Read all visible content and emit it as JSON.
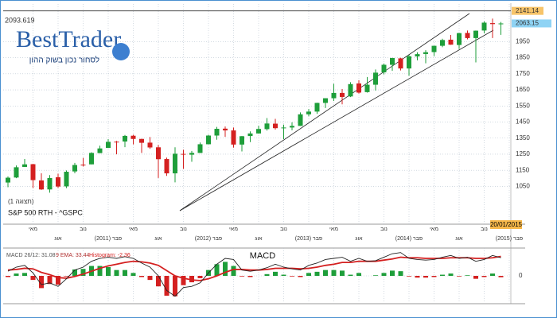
{
  "chart_data": [
    {
      "type": "candlestick",
      "logo": {
        "brand": "BestTrader",
        "tagline": "לסחור נכון בשוק ההון"
      },
      "top_label": "2093.619",
      "symbol": "S&P 500 RTH - ^GSPC",
      "view": "(תצוגה 1)",
      "date_label": "20/01/2015",
      "high_line": 2141.14,
      "last_price": 2063.15,
      "categories": [
        null,
        null,
        null,
        "מאי",
        null,
        null,
        "אוג",
        null,
        null,
        "נוב",
        null,
        null,
        "(2011) פבר",
        null,
        null,
        "מאי",
        null,
        null,
        "אוג",
        null,
        null,
        "נוב",
        null,
        null,
        "(2012) פבר",
        null,
        null,
        "מאי",
        null,
        null,
        "אוג",
        null,
        null,
        "נוב",
        null,
        null,
        "(2013) פבר",
        null,
        null,
        "מאי",
        null,
        null,
        "אוג",
        null,
        null,
        "נוב",
        null,
        null,
        "(2014) פבר",
        null,
        null,
        "מאי",
        null,
        null,
        "אוג",
        null,
        null,
        "נוב",
        null,
        null,
        "(2015) פבר"
      ],
      "open": [
        1074,
        1105,
        1171,
        1188,
        1087,
        1031,
        1107,
        1050,
        1143,
        1185,
        1187,
        1257,
        1289,
        1328,
        1329,
        1365,
        1345,
        1322,
        1293,
        1220,
        1131,
        1252,
        1247,
        1258,
        1312,
        1366,
        1409,
        1398,
        1310,
        1363,
        1379,
        1406,
        1440,
        1412,
        1416,
        1426,
        1498,
        1515,
        1569,
        1598,
        1631,
        1609,
        1690,
        1636,
        1682,
        1759,
        1806,
        1846,
        1783,
        1858,
        1873,
        1885,
        1924,
        1962,
        1929,
        2004,
        1972,
        2019,
        2065,
        2058,
        null
      ],
      "high": [
        1112,
        1180,
        1220,
        1190,
        1131,
        1120,
        1129,
        1149,
        1196,
        1227,
        1262,
        1303,
        1344,
        1333,
        1370,
        1371,
        1346,
        1357,
        1308,
        1229,
        1293,
        1278,
        1270,
        1323,
        1371,
        1420,
        1422,
        1416,
        1363,
        1392,
        1427,
        1475,
        1470,
        1434,
        1448,
        1510,
        1531,
        1570,
        1598,
        1688,
        1655,
        1698,
        1710,
        1730,
        1777,
        1814,
        1849,
        1850,
        1867,
        1884,
        1897,
        1925,
        1968,
        1991,
        2005,
        2019,
        2019,
        2076,
        2093,
        2072,
        null
      ],
      "low": [
        1045,
        1101,
        1170,
        1040,
        1028,
        1011,
        1040,
        1039,
        1131,
        1174,
        1187,
        1257,
        1289,
        1249,
        1294,
        1311,
        1258,
        1283,
        1102,
        1115,
        1075,
        1159,
        1203,
        1258,
        1311,
        1340,
        1358,
        1291,
        1267,
        1325,
        1378,
        1397,
        1403,
        1344,
        1399,
        1426,
        1486,
        1501,
        1537,
        1581,
        1560,
        1605,
        1627,
        1633,
        1646,
        1746,
        1768,
        1771,
        1738,
        1834,
        1815,
        1860,
        1915,
        1930,
        1904,
        1964,
        1821,
        2001,
        1972,
        1992,
        null
      ],
      "close": [
        1104,
        1169,
        1187,
        1089,
        1031,
        1102,
        1049,
        1141,
        1183,
        1181,
        1258,
        1286,
        1327,
        1326,
        1364,
        1345,
        1321,
        1292,
        1219,
        1131,
        1253,
        1247,
        1258,
        1312,
        1366,
        1408,
        1398,
        1310,
        1362,
        1379,
        1407,
        1441,
        1412,
        1416,
        1426,
        1498,
        1515,
        1569,
        1598,
        1631,
        1606,
        1686,
        1633,
        1682,
        1757,
        1806,
        1848,
        1783,
        1859,
        1872,
        1884,
        1924,
        1960,
        1931,
        2003,
        1972,
        2018,
        2068,
        2059,
        2063,
        null
      ],
      "up_color": "#1e9e3a",
      "down_color": "#d42020",
      "ylim": [
        815,
        2184
      ],
      "yticks": [
        1050,
        1150,
        1250,
        1350,
        1450,
        1550,
        1650,
        1750,
        1850,
        1950
      ],
      "grid": true
    },
    {
      "type": "macd",
      "title": "MACD",
      "legend": [
        "MACD 26/12: 31.08",
        "9 EMA: 33.44",
        "Histogram: -2.36"
      ],
      "series": [
        {
          "name": "MACD",
          "color": "#222222",
          "values": [
            8,
            15,
            18,
            5,
            -15,
            -12,
            -18,
            -5,
            10,
            15,
            25,
            30,
            32,
            30,
            33,
            30,
            22,
            15,
            0,
            -25,
            -35,
            -20,
            -18,
            -12,
            5,
            20,
            30,
            28,
            10,
            8,
            10,
            14,
            20,
            15,
            12,
            10,
            18,
            22,
            28,
            30,
            32,
            25,
            30,
            25,
            26,
            32,
            38,
            40,
            30,
            28,
            27,
            28,
            32,
            35,
            30,
            32,
            25,
            28,
            35,
            31.08,
            null
          ]
        },
        {
          "name": "EMA",
          "color": "#d42020",
          "values": [
            10,
            11,
            13,
            12,
            6,
            2,
            -3,
            -4,
            -1,
            3,
            8,
            13,
            17,
            20,
            23,
            25,
            24,
            22,
            18,
            9,
            0,
            -4,
            -7,
            -8,
            -5,
            0,
            6,
            11,
            11,
            10,
            10,
            11,
            13,
            13,
            13,
            12,
            13,
            15,
            18,
            20,
            23,
            23,
            25,
            25,
            25,
            27,
            29,
            32,
            31,
            31,
            30,
            30,
            30,
            31,
            31,
            31,
            30,
            30,
            31,
            33.44,
            null
          ]
        },
        {
          "name": "Histogram",
          "color": "#1e9e3a",
          "values": [
            -2,
            4,
            5,
            -7,
            -21,
            -14,
            -15,
            -1,
            11,
            12,
            17,
            17,
            15,
            10,
            10,
            5,
            -2,
            -7,
            -18,
            -34,
            -35,
            -16,
            -11,
            -4,
            10,
            20,
            24,
            17,
            -1,
            -2,
            0,
            3,
            7,
            2,
            -1,
            -2,
            5,
            7,
            10,
            10,
            9,
            2,
            5,
            0,
            1,
            5,
            9,
            8,
            -1,
            -3,
            -3,
            -2,
            2,
            4,
            -1,
            1,
            -5,
            -2,
            4,
            -2.36,
            null
          ]
        }
      ],
      "down_color": "#d42020",
      "ylim": [
        -45,
        45
      ],
      "yticks": [
        0
      ]
    }
  ]
}
